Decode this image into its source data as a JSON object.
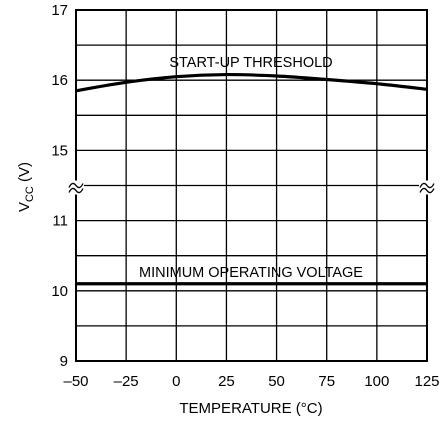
{
  "chart_data": {
    "type": "line",
    "xlabel": "TEMPERATURE (°C)",
    "ylabel_main": "V",
    "ylabel_sub": "CC",
    "ylabel_unit": " (V)",
    "x_ticks": [
      "–50",
      "–25",
      "0",
      "25",
      "50",
      "75",
      "100",
      "125"
    ],
    "y_ticks": [
      "17",
      "16",
      "15",
      "11",
      "10",
      "9"
    ],
    "xlim": [
      -50,
      125
    ],
    "axis_break": "between 15 and 11",
    "grid": true,
    "series": [
      {
        "name": "START-UP THRESHOLD",
        "x": [
          -50,
          -25,
          0,
          25,
          50,
          75,
          100,
          125
        ],
        "y": [
          15.85,
          15.97,
          16.05,
          16.08,
          16.06,
          16.01,
          15.95,
          15.87
        ]
      },
      {
        "name": "MINIMUM OPERATING VOLTAGE",
        "x": [
          -50,
          -25,
          0,
          25,
          50,
          75,
          100,
          125
        ],
        "y": [
          10.1,
          10.1,
          10.1,
          10.1,
          10.1,
          10.1,
          10.1,
          10.1
        ]
      }
    ]
  }
}
